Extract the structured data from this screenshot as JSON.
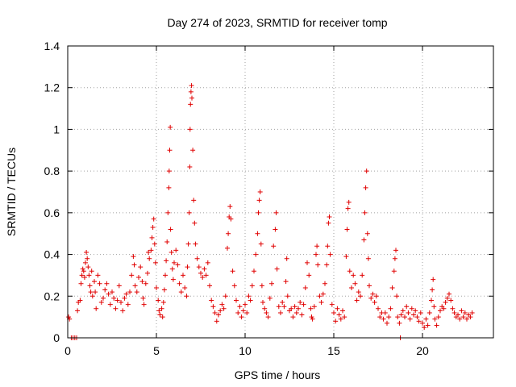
{
  "chart_data": {
    "type": "scatter",
    "title": "Day 274 of 2023, SRMTID for receiver tomp",
    "xlabel": "GPS time / hours",
    "ylabel": "SRMTID / TECUs",
    "xlim": [
      0,
      24
    ],
    "ylim": [
      0,
      1.4
    ],
    "x_ticks": [
      0,
      5,
      10,
      15,
      20
    ],
    "y_ticks": [
      0,
      0.2,
      0.4,
      0.6,
      0.8,
      1,
      1.2,
      1.4
    ],
    "x_tick_labels": [
      "0",
      "5",
      "10",
      "15",
      "20"
    ],
    "y_tick_labels": [
      "0",
      "0.2",
      "0.4",
      "0.6",
      "0.8",
      "1",
      "1.2",
      "1.4"
    ],
    "grid": true,
    "marker": "plus",
    "color": "#e00000",
    "series": [
      {
        "name": "SRMTID",
        "points": [
          [
            0.05,
            0.1
          ],
          [
            0.1,
            0.09
          ],
          [
            0.2,
            0.0
          ],
          [
            0.3,
            0.0
          ],
          [
            0.4,
            0.0
          ],
          [
            0.5,
            0.0
          ],
          [
            0.55,
            0.13
          ],
          [
            0.6,
            0.17
          ],
          [
            0.7,
            0.18
          ],
          [
            0.75,
            0.26
          ],
          [
            0.8,
            0.3
          ],
          [
            0.85,
            0.33
          ],
          [
            0.9,
            0.32
          ],
          [
            0.95,
            0.29
          ],
          [
            1.0,
            0.36
          ],
          [
            1.05,
            0.41
          ],
          [
            1.1,
            0.38
          ],
          [
            1.15,
            0.34
          ],
          [
            1.2,
            0.3
          ],
          [
            1.25,
            0.25
          ],
          [
            1.3,
            0.22
          ],
          [
            1.35,
            0.32
          ],
          [
            1.4,
            0.2
          ],
          [
            1.5,
            0.27
          ],
          [
            1.55,
            0.22
          ],
          [
            1.6,
            0.14
          ],
          [
            1.7,
            0.3
          ],
          [
            1.8,
            0.26
          ],
          [
            1.9,
            0.17
          ],
          [
            2.0,
            0.19
          ],
          [
            2.1,
            0.23
          ],
          [
            2.2,
            0.26
          ],
          [
            2.3,
            0.21
          ],
          [
            2.4,
            0.16
          ],
          [
            2.5,
            0.22
          ],
          [
            2.6,
            0.19
          ],
          [
            2.7,
            0.14
          ],
          [
            2.8,
            0.18
          ],
          [
            2.9,
            0.25
          ],
          [
            3.0,
            0.17
          ],
          [
            3.1,
            0.13
          ],
          [
            3.2,
            0.19
          ],
          [
            3.3,
            0.21
          ],
          [
            3.4,
            0.16
          ],
          [
            3.5,
            0.22
          ],
          [
            3.6,
            0.3
          ],
          [
            3.7,
            0.39
          ],
          [
            3.75,
            0.35
          ],
          [
            3.8,
            0.25
          ],
          [
            3.9,
            0.22
          ],
          [
            4.0,
            0.29
          ],
          [
            4.1,
            0.34
          ],
          [
            4.2,
            0.27
          ],
          [
            4.25,
            0.19
          ],
          [
            4.3,
            0.16
          ],
          [
            4.4,
            0.26
          ],
          [
            4.5,
            0.31
          ],
          [
            4.55,
            0.41
          ],
          [
            4.6,
            0.38
          ],
          [
            4.7,
            0.42
          ],
          [
            4.75,
            0.48
          ],
          [
            4.8,
            0.53
          ],
          [
            4.85,
            0.57
          ],
          [
            4.9,
            0.45
          ],
          [
            4.95,
            0.36
          ],
          [
            5.0,
            0.24
          ],
          [
            5.1,
            0.18
          ],
          [
            5.15,
            0.13
          ],
          [
            5.2,
            0.11
          ],
          [
            5.3,
            0.14
          ],
          [
            5.35,
            0.1
          ],
          [
            5.4,
            0.17
          ],
          [
            5.45,
            0.23
          ],
          [
            5.5,
            0.3
          ],
          [
            5.55,
            0.37
          ],
          [
            5.6,
            0.46
          ],
          [
            5.65,
            0.6
          ],
          [
            5.7,
            0.72
          ],
          [
            5.72,
            0.8
          ],
          [
            5.75,
            0.9
          ],
          [
            5.78,
            1.01
          ],
          [
            5.8,
            0.52
          ],
          [
            5.85,
            0.41
          ],
          [
            5.9,
            0.33
          ],
          [
            5.95,
            0.28
          ],
          [
            6.0,
            0.36
          ],
          [
            6.1,
            0.42
          ],
          [
            6.2,
            0.35
          ],
          [
            6.3,
            0.26
          ],
          [
            6.4,
            0.22
          ],
          [
            6.5,
            0.3
          ],
          [
            6.6,
            0.24
          ],
          [
            6.7,
            0.2
          ],
          [
            6.75,
            0.34
          ],
          [
            6.8,
            0.45
          ],
          [
            6.85,
            0.6
          ],
          [
            6.88,
            0.82
          ],
          [
            6.9,
            1.0
          ],
          [
            6.92,
            1.12
          ],
          [
            6.95,
            1.18
          ],
          [
            6.98,
            1.21
          ],
          [
            7.0,
            1.15
          ],
          [
            7.05,
            0.9
          ],
          [
            7.1,
            0.66
          ],
          [
            7.15,
            0.55
          ],
          [
            7.2,
            0.45
          ],
          [
            7.3,
            0.38
          ],
          [
            7.4,
            0.34
          ],
          [
            7.5,
            0.31
          ],
          [
            7.6,
            0.29
          ],
          [
            7.7,
            0.33
          ],
          [
            7.8,
            0.3
          ],
          [
            7.9,
            0.36
          ],
          [
            8.0,
            0.25
          ],
          [
            8.1,
            0.18
          ],
          [
            8.2,
            0.15
          ],
          [
            8.3,
            0.12
          ],
          [
            8.4,
            0.08
          ],
          [
            8.5,
            0.11
          ],
          [
            8.6,
            0.13
          ],
          [
            8.7,
            0.16
          ],
          [
            8.8,
            0.14
          ],
          [
            8.9,
            0.2
          ],
          [
            9.0,
            0.43
          ],
          [
            9.05,
            0.5
          ],
          [
            9.1,
            0.58
          ],
          [
            9.15,
            0.63
          ],
          [
            9.2,
            0.57
          ],
          [
            9.3,
            0.32
          ],
          [
            9.4,
            0.25
          ],
          [
            9.5,
            0.18
          ],
          [
            9.6,
            0.12
          ],
          [
            9.7,
            0.15
          ],
          [
            9.8,
            0.1
          ],
          [
            9.9,
            0.13
          ],
          [
            10.0,
            0.16
          ],
          [
            10.1,
            0.12
          ],
          [
            10.2,
            0.2
          ],
          [
            10.3,
            0.18
          ],
          [
            10.4,
            0.25
          ],
          [
            10.5,
            0.32
          ],
          [
            10.6,
            0.4
          ],
          [
            10.7,
            0.5
          ],
          [
            10.75,
            0.6
          ],
          [
            10.8,
            0.66
          ],
          [
            10.85,
            0.7
          ],
          [
            10.9,
            0.45
          ],
          [
            10.95,
            0.25
          ],
          [
            11.0,
            0.17
          ],
          [
            11.1,
            0.14
          ],
          [
            11.2,
            0.12
          ],
          [
            11.3,
            0.1
          ],
          [
            11.4,
            0.19
          ],
          [
            11.5,
            0.26
          ],
          [
            11.6,
            0.44
          ],
          [
            11.7,
            0.52
          ],
          [
            11.75,
            0.6
          ],
          [
            11.8,
            0.33
          ],
          [
            11.9,
            0.15
          ],
          [
            12.0,
            0.12
          ],
          [
            12.1,
            0.17
          ],
          [
            12.2,
            0.15
          ],
          [
            12.3,
            0.27
          ],
          [
            12.35,
            0.38
          ],
          [
            12.4,
            0.2
          ],
          [
            12.5,
            0.13
          ],
          [
            12.6,
            0.14
          ],
          [
            12.7,
            0.1
          ],
          [
            12.8,
            0.15
          ],
          [
            12.9,
            0.12
          ],
          [
            13.0,
            0.14
          ],
          [
            13.1,
            0.17
          ],
          [
            13.2,
            0.11
          ],
          [
            13.3,
            0.16
          ],
          [
            13.4,
            0.24
          ],
          [
            13.5,
            0.36
          ],
          [
            13.6,
            0.3
          ],
          [
            13.7,
            0.14
          ],
          [
            13.75,
            0.1
          ],
          [
            13.8,
            0.09
          ],
          [
            13.9,
            0.15
          ],
          [
            14.0,
            0.4
          ],
          [
            14.05,
            0.44
          ],
          [
            14.1,
            0.35
          ],
          [
            14.2,
            0.2
          ],
          [
            14.3,
            0.17
          ],
          [
            14.4,
            0.21
          ],
          [
            14.5,
            0.26
          ],
          [
            14.6,
            0.35
          ],
          [
            14.65,
            0.44
          ],
          [
            14.7,
            0.55
          ],
          [
            14.75,
            0.58
          ],
          [
            14.8,
            0.4
          ],
          [
            14.9,
            0.16
          ],
          [
            15.0,
            0.12
          ],
          [
            15.1,
            0.08
          ],
          [
            15.2,
            0.14
          ],
          [
            15.3,
            0.11
          ],
          [
            15.4,
            0.09
          ],
          [
            15.5,
            0.13
          ],
          [
            15.6,
            0.1
          ],
          [
            15.7,
            0.39
          ],
          [
            15.75,
            0.52
          ],
          [
            15.8,
            0.62
          ],
          [
            15.85,
            0.65
          ],
          [
            15.9,
            0.32
          ],
          [
            16.0,
            0.24
          ],
          [
            16.1,
            0.3
          ],
          [
            16.2,
            0.26
          ],
          [
            16.3,
            0.18
          ],
          [
            16.4,
            0.22
          ],
          [
            16.5,
            0.2
          ],
          [
            16.6,
            0.3
          ],
          [
            16.7,
            0.47
          ],
          [
            16.75,
            0.6
          ],
          [
            16.8,
            0.72
          ],
          [
            16.85,
            0.8
          ],
          [
            16.9,
            0.5
          ],
          [
            16.95,
            0.38
          ],
          [
            17.0,
            0.25
          ],
          [
            17.1,
            0.19
          ],
          [
            17.2,
            0.21
          ],
          [
            17.3,
            0.17
          ],
          [
            17.4,
            0.2
          ],
          [
            17.5,
            0.14
          ],
          [
            17.6,
            0.1
          ],
          [
            17.7,
            0.12
          ],
          [
            17.8,
            0.09
          ],
          [
            17.9,
            0.12
          ],
          [
            18.0,
            0.07
          ],
          [
            18.1,
            0.1
          ],
          [
            18.2,
            0.14
          ],
          [
            18.3,
            0.24
          ],
          [
            18.4,
            0.32
          ],
          [
            18.45,
            0.38
          ],
          [
            18.5,
            0.42
          ],
          [
            18.55,
            0.2
          ],
          [
            18.6,
            0.1
          ],
          [
            18.7,
            0.07
          ],
          [
            18.75,
            0.0
          ],
          [
            18.8,
            0.11
          ],
          [
            18.9,
            0.13
          ],
          [
            19.0,
            0.1
          ],
          [
            19.1,
            0.15
          ],
          [
            19.2,
            0.12
          ],
          [
            19.3,
            0.09
          ],
          [
            19.4,
            0.14
          ],
          [
            19.5,
            0.11
          ],
          [
            19.6,
            0.13
          ],
          [
            19.7,
            0.1
          ],
          [
            19.8,
            0.08
          ],
          [
            19.9,
            0.12
          ],
          [
            20.0,
            0.07
          ],
          [
            20.1,
            0.05
          ],
          [
            20.2,
            0.09
          ],
          [
            20.3,
            0.06
          ],
          [
            20.4,
            0.12
          ],
          [
            20.5,
            0.18
          ],
          [
            20.55,
            0.23
          ],
          [
            20.6,
            0.28
          ],
          [
            20.65,
            0.15
          ],
          [
            20.7,
            0.09
          ],
          [
            20.8,
            0.06
          ],
          [
            20.9,
            0.1
          ],
          [
            21.0,
            0.13
          ],
          [
            21.1,
            0.15
          ],
          [
            21.2,
            0.14
          ],
          [
            21.3,
            0.17
          ],
          [
            21.4,
            0.19
          ],
          [
            21.5,
            0.21
          ],
          [
            21.6,
            0.18
          ],
          [
            21.7,
            0.14
          ],
          [
            21.8,
            0.12
          ],
          [
            21.9,
            0.1
          ],
          [
            22.0,
            0.11
          ],
          [
            22.1,
            0.09
          ],
          [
            22.2,
            0.13
          ],
          [
            22.3,
            0.1
          ],
          [
            22.4,
            0.12
          ],
          [
            22.5,
            0.09
          ],
          [
            22.6,
            0.11
          ],
          [
            22.7,
            0.1
          ],
          [
            22.8,
            0.12
          ]
        ]
      }
    ]
  }
}
